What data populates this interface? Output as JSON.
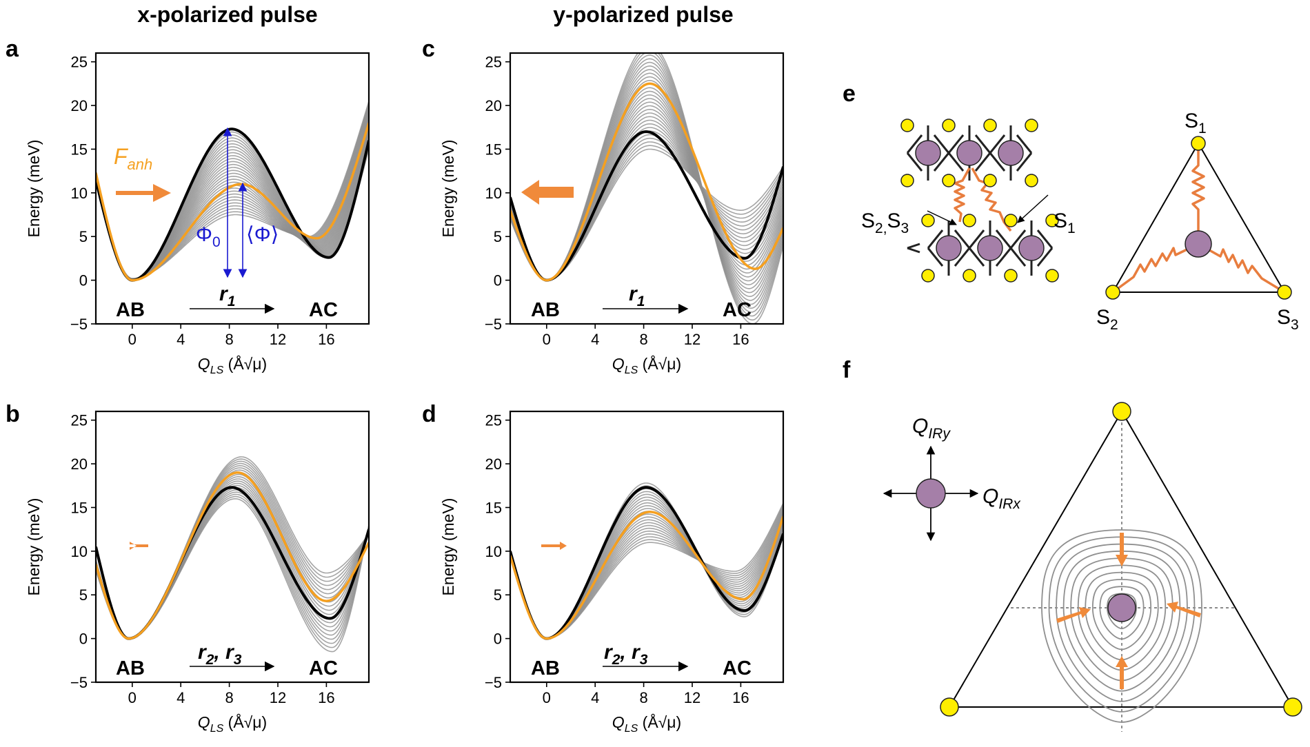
{
  "column_titles": {
    "left": "x-polarized pulse",
    "right": "y-polarized pulse"
  },
  "panel_letters": {
    "a": "a",
    "b": "b",
    "c": "c",
    "d": "d",
    "e": "e",
    "f": "f"
  },
  "axis": {
    "ylabel": "Energy (meV)",
    "xlabel_symbol": "Q",
    "xlabel_sub": "LS",
    "xlabel_units": "(Å√μ)",
    "yticks": [
      "−5",
      "0",
      "5",
      "10",
      "15",
      "20",
      "25"
    ],
    "xticks": [
      "0",
      "4",
      "8",
      "12",
      "16"
    ],
    "region_left": "AB",
    "region_right": "AC"
  },
  "annotations": {
    "r1": "r",
    "r1_sub": "1",
    "r23_a": "r",
    "r23_a_sub": "2",
    "r23_sep": ", ",
    "r23_b": "r",
    "r23_b_sub": "3",
    "force": "F",
    "force_sub": "anh",
    "phi0": "Φ",
    "phi0_sub": "0",
    "phi_avg": "⟨Φ⟩"
  },
  "lattice": {
    "label_s23": "S",
    "label_s23_sub": "2,",
    "label_s3": "S",
    "label_s3_sub": "3",
    "label_s1": "S",
    "label_s1_sub": "1"
  },
  "triangle": {
    "s1": "S",
    "s1_sub": "1",
    "s2": "S",
    "s2_sub": "2",
    "s3": "S",
    "s3_sub": "3"
  },
  "irlabels": {
    "qy": "Q",
    "qy_sub": "IRy",
    "qx": "Q",
    "qx_sub": "IRx"
  },
  "colors": {
    "orange": "#f5a020",
    "spring": "#e87d3e",
    "arrow_orange": "#f08a3a",
    "gray": "#8f8f8f",
    "black": "#000000",
    "blue": "#1a1ad0",
    "purple": "#a57fa8",
    "yellow": "#ffee00"
  },
  "chart_data": [
    {
      "panel": "a",
      "type": "line",
      "xlim": [
        -3,
        19.5
      ],
      "ylim": [
        -5,
        26
      ],
      "x_ticks": [
        0,
        4,
        8,
        12,
        16
      ],
      "y_ticks": [
        -5,
        0,
        5,
        10,
        15,
        20,
        25
      ],
      "series": [
        {
          "points": [
            [
              -3,
              11.5
            ],
            [
              0,
              0
            ],
            [
              8.2,
              17.3
            ],
            [
              16.2,
              2.6
            ],
            [
              19.5,
              16
            ]
          ]
        },
        {
          "points": [
            [
              -3,
              12.3
            ],
            [
              0,
              0
            ],
            [
              9,
              11
            ],
            [
              15.2,
              4.8
            ],
            [
              19.5,
              18
            ]
          ]
        }
      ],
      "family_low": [
        [
          -3,
          12.5
        ],
        [
          0,
          0.2
        ],
        [
          8.5,
          7.5
        ],
        [
          14.5,
          5
        ],
        [
          19.5,
          20.5
        ]
      ],
      "family_high": [
        [
          -3,
          11.3
        ],
        [
          0,
          -0.1
        ],
        [
          8.2,
          17.3
        ],
        [
          16,
          2.6
        ],
        [
          19.5,
          15
        ]
      ],
      "family_count": 30
    },
    {
      "panel": "b",
      "type": "line",
      "xlim": [
        -3,
        19.5
      ],
      "ylim": [
        -5,
        26
      ],
      "x_ticks": [
        0,
        4,
        8,
        12,
        16
      ],
      "y_ticks": [
        -5,
        0,
        5,
        10,
        15,
        20,
        25
      ],
      "series": [
        {
          "points": [
            [
              -3,
              10.5
            ],
            [
              -0.3,
              0
            ],
            [
              8.2,
              17.3
            ],
            [
              16.3,
              2.3
            ],
            [
              19.5,
              12.5
            ]
          ]
        },
        {
          "points": [
            [
              -3,
              8.5
            ],
            [
              -0.3,
              0
            ],
            [
              8.7,
              19
            ],
            [
              16,
              4.3
            ],
            [
              19.5,
              11
            ]
          ]
        }
      ],
      "family_low": [
        [
          -3,
          9
        ],
        [
          -0.3,
          0
        ],
        [
          8.5,
          16
        ],
        [
          16.5,
          -1.5
        ],
        [
          19.5,
          13
        ]
      ],
      "family_high": [
        [
          -3,
          7.8
        ],
        [
          -0.3,
          0
        ],
        [
          9,
          20.8
        ],
        [
          16,
          7.5
        ],
        [
          19.5,
          12
        ]
      ],
      "family_count": 20
    },
    {
      "panel": "c",
      "type": "line",
      "xlim": [
        -3,
        19.5
      ],
      "ylim": [
        -5,
        26
      ],
      "x_ticks": [
        0,
        4,
        8,
        12,
        16
      ],
      "y_ticks": [
        -5,
        0,
        5,
        10,
        15,
        20,
        25
      ],
      "series": [
        {
          "points": [
            [
              -3,
              9.5
            ],
            [
              0,
              0
            ],
            [
              8.2,
              17
            ],
            [
              16.3,
              2.5
            ],
            [
              19.5,
              13
            ]
          ]
        },
        {
          "points": [
            [
              -3,
              8
            ],
            [
              0,
              0
            ],
            [
              8.5,
              22.5
            ],
            [
              17.2,
              1.3
            ],
            [
              19.5,
              6
            ]
          ]
        }
      ],
      "family_low": [
        [
          -3,
          9
        ],
        [
          0,
          0
        ],
        [
          8.5,
          15
        ],
        [
          16,
          8
        ],
        [
          19.5,
          13
        ]
      ],
      "family_high": [
        [
          -3,
          7
        ],
        [
          0,
          0
        ],
        [
          8.5,
          27
        ],
        [
          17,
          -5
        ],
        [
          19.5,
          4
        ]
      ],
      "family_count": 30
    },
    {
      "panel": "d",
      "type": "line",
      "xlim": [
        -3,
        19.5
      ],
      "ylim": [
        -5,
        26
      ],
      "x_ticks": [
        0,
        4,
        8,
        12,
        16
      ],
      "y_ticks": [
        -5,
        0,
        5,
        10,
        15,
        20,
        25
      ],
      "series": [
        {
          "points": [
            [
              -3,
              10
            ],
            [
              0,
              0
            ],
            [
              8.2,
              17.3
            ],
            [
              16.3,
              3.2
            ],
            [
              19.5,
              12
            ]
          ]
        },
        {
          "points": [
            [
              -3,
              9.5
            ],
            [
              0,
              0
            ],
            [
              8.5,
              14.5
            ],
            [
              16.2,
              4.5
            ],
            [
              19.5,
              14
            ]
          ]
        }
      ],
      "family_low": [
        [
          -3,
          9.5
        ],
        [
          0,
          0
        ],
        [
          8.5,
          11
        ],
        [
          15.5,
          7.7
        ],
        [
          19.5,
          15.5
        ]
      ],
      "family_high": [
        [
          -3,
          9.8
        ],
        [
          0,
          0
        ],
        [
          8.2,
          17.8
        ],
        [
          16.3,
          2.5
        ],
        [
          19.5,
          12
        ]
      ],
      "family_count": 22
    }
  ]
}
